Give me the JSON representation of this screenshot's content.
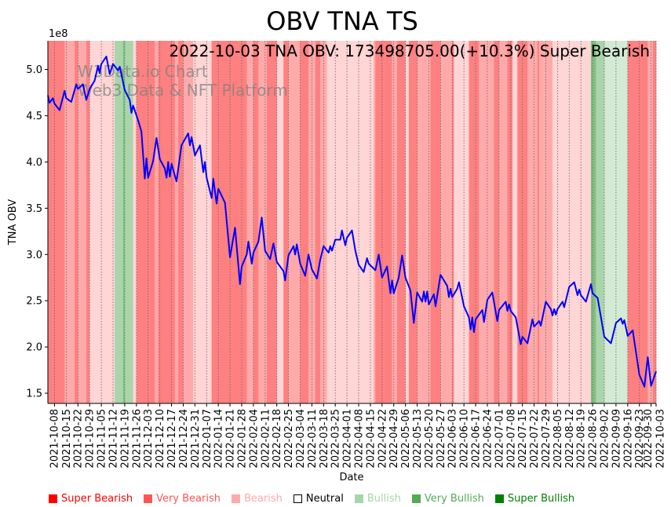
{
  "colors": {
    "line": "#0000ff",
    "band_super_bearish": "#ff8080",
    "band_very_bearish": "#ffaaaa",
    "band_bearish": "#ffd5d5",
    "band_bullish": "#d4ead4",
    "band_very_bullish": "#aad5aa",
    "band_super_bullish": "#80c080"
  },
  "legend": [
    {
      "label": "Super Bearish",
      "color": "#ff0000",
      "hollow": false
    },
    {
      "label": "Very Bearish",
      "color": "#ff5555",
      "hollow": false
    },
    {
      "label": "Bearish",
      "color": "#ffaaaa",
      "hollow": false
    },
    {
      "label": "Neutral",
      "color": "#000000",
      "hollow": true
    },
    {
      "label": "Bullish",
      "color": "#a8d5a8",
      "hollow": false
    },
    {
      "label": "Very Bullish",
      "color": "#55aa55",
      "hollow": false
    },
    {
      "label": "Super Bullish",
      "color": "#008000",
      "hollow": false
    }
  ],
  "chart_data": {
    "type": "line",
    "title": "OBV TNA TS",
    "annotation": "2022-10-03 TNA OBV: 173498705.00(+10.3%) Super Bearish",
    "watermark": [
      "W3Data.io Chart",
      "Web3 Data & NFT Platform"
    ],
    "xlabel": "Date",
    "ylabel": "TNA OBV",
    "y_offset_label": "1e8",
    "ylim": [
      1.39,
      5.31
    ],
    "y_ticks": [
      "1.5",
      "2.0",
      "2.5",
      "3.0",
      "3.5",
      "4.0",
      "4.5",
      "5.0"
    ],
    "x_origin": "2021-10-04",
    "x_end": "2022-10-03",
    "x_ticks": [
      "2021-10-08",
      "2021-10-15",
      "2021-10-22",
      "2021-10-29",
      "2021-11-05",
      "2021-11-12",
      "2021-11-19",
      "2021-11-26",
      "2021-12-03",
      "2021-12-10",
      "2021-12-17",
      "2021-12-24",
      "2021-12-31",
      "2022-01-07",
      "2022-01-14",
      "2022-01-21",
      "2022-01-28",
      "2022-02-04",
      "2022-02-11",
      "2022-02-18",
      "2022-02-25",
      "2022-03-04",
      "2022-03-11",
      "2022-03-18",
      "2022-03-25",
      "2022-04-01",
      "2022-04-08",
      "2022-04-15",
      "2022-04-22",
      "2022-04-29",
      "2022-05-06",
      "2022-05-13",
      "2022-05-20",
      "2022-05-27",
      "2022-06-03",
      "2022-06-10",
      "2022-06-17",
      "2022-06-24",
      "2022-07-01",
      "2022-07-08",
      "2022-07-15",
      "2022-07-22",
      "2022-07-29",
      "2022-08-05",
      "2022-08-12",
      "2022-08-19",
      "2022-08-26",
      "2022-09-02",
      "2022-09-09",
      "2022-09-16",
      "2022-09-23",
      "2022-09-30",
      "2022-10-03"
    ],
    "series": [
      {
        "name": "TNA OBV (1e8)",
        "x_unit": "days since x_origin",
        "points": [
          [
            0,
            4.72
          ],
          [
            1,
            4.64
          ],
          [
            3,
            4.69
          ],
          [
            4,
            4.63
          ],
          [
            7,
            4.56
          ],
          [
            10,
            4.77
          ],
          [
            11,
            4.69
          ],
          [
            14,
            4.65
          ],
          [
            17,
            4.84
          ],
          [
            18,
            4.79
          ],
          [
            21,
            4.84
          ],
          [
            23,
            4.67
          ],
          [
            25,
            4.79
          ],
          [
            28,
            4.88
          ],
          [
            30,
            5.04
          ],
          [
            31,
            4.96
          ],
          [
            32,
            5.06
          ],
          [
            35,
            5.14
          ],
          [
            37,
            4.95
          ],
          [
            39,
            5.06
          ],
          [
            42,
            4.99
          ],
          [
            43,
            5.03
          ],
          [
            46,
            4.78
          ],
          [
            49,
            4.67
          ],
          [
            50,
            4.53
          ],
          [
            51,
            4.61
          ],
          [
            54,
            4.45
          ],
          [
            56,
            4.33
          ],
          [
            58,
            3.82
          ],
          [
            59,
            4.04
          ],
          [
            60,
            3.83
          ],
          [
            63,
            4.01
          ],
          [
            65,
            4.26
          ],
          [
            67,
            4.03
          ],
          [
            70,
            3.93
          ],
          [
            71,
            3.83
          ],
          [
            72,
            4.0
          ],
          [
            73,
            3.84
          ],
          [
            74,
            3.98
          ],
          [
            77,
            3.79
          ],
          [
            80,
            4.18
          ],
          [
            84,
            4.31
          ],
          [
            85,
            4.18
          ],
          [
            86,
            4.27
          ],
          [
            88,
            4.07
          ],
          [
            91,
            4.18
          ],
          [
            93,
            3.89
          ],
          [
            94,
            4.0
          ],
          [
            95,
            3.83
          ],
          [
            98,
            3.61
          ],
          [
            99,
            3.82
          ],
          [
            101,
            3.55
          ],
          [
            102,
            3.71
          ],
          [
            106,
            3.56
          ],
          [
            109,
            2.97
          ],
          [
            112,
            3.29
          ],
          [
            115,
            2.68
          ],
          [
            116,
            2.87
          ],
          [
            119,
            3.0
          ],
          [
            120,
            3.14
          ],
          [
            122,
            2.9
          ],
          [
            123,
            3.02
          ],
          [
            126,
            3.14
          ],
          [
            128,
            3.4
          ],
          [
            130,
            3.04
          ],
          [
            133,
            2.95
          ],
          [
            135,
            3.12
          ],
          [
            137,
            2.92
          ],
          [
            141,
            2.82
          ],
          [
            142,
            2.72
          ],
          [
            144,
            2.99
          ],
          [
            147,
            3.09
          ],
          [
            148,
            3.0
          ],
          [
            149,
            3.11
          ],
          [
            151,
            2.9
          ],
          [
            154,
            2.77
          ],
          [
            156,
            3.0
          ],
          [
            158,
            2.84
          ],
          [
            161,
            2.74
          ],
          [
            163,
            2.94
          ],
          [
            165,
            3.09
          ],
          [
            168,
            3.02
          ],
          [
            169,
            3.09
          ],
          [
            170,
            3.04
          ],
          [
            172,
            3.16
          ],
          [
            175,
            3.16
          ],
          [
            176,
            3.26
          ],
          [
            178,
            3.1
          ],
          [
            179,
            3.18
          ],
          [
            182,
            3.26
          ],
          [
            184,
            3.04
          ],
          [
            186,
            2.89
          ],
          [
            189,
            2.81
          ],
          [
            191,
            2.96
          ],
          [
            192,
            2.9
          ],
          [
            196,
            2.83
          ],
          [
            198,
            3.0
          ],
          [
            200,
            2.75
          ],
          [
            203,
            2.87
          ],
          [
            205,
            2.58
          ],
          [
            206,
            2.72
          ],
          [
            207,
            2.58
          ],
          [
            210,
            2.75
          ],
          [
            212,
            2.99
          ],
          [
            214,
            2.75
          ],
          [
            217,
            2.61
          ],
          [
            219,
            2.26
          ],
          [
            221,
            2.59
          ],
          [
            224,
            2.49
          ],
          [
            225,
            2.6
          ],
          [
            226,
            2.49
          ],
          [
            227,
            2.6
          ],
          [
            228,
            2.46
          ],
          [
            231,
            2.57
          ],
          [
            232,
            2.44
          ],
          [
            235,
            2.78
          ],
          [
            239,
            2.66
          ],
          [
            240,
            2.54
          ],
          [
            241,
            2.63
          ],
          [
            242,
            2.54
          ],
          [
            245,
            2.63
          ],
          [
            246,
            2.7
          ],
          [
            249,
            2.44
          ],
          [
            252,
            2.32
          ],
          [
            253,
            2.19
          ],
          [
            254,
            2.32
          ],
          [
            255,
            2.16
          ],
          [
            256,
            2.3
          ],
          [
            260,
            2.4
          ],
          [
            261,
            2.27
          ],
          [
            263,
            2.51
          ],
          [
            266,
            2.59
          ],
          [
            269,
            2.28
          ],
          [
            270,
            2.4
          ],
          [
            274,
            2.49
          ],
          [
            275,
            2.39
          ],
          [
            276,
            2.46
          ],
          [
            277,
            2.39
          ],
          [
            280,
            2.32
          ],
          [
            283,
            2.03
          ],
          [
            284,
            2.11
          ],
          [
            287,
            2.04
          ],
          [
            290,
            2.3
          ],
          [
            291,
            2.22
          ],
          [
            294,
            2.28
          ],
          [
            295,
            2.23
          ],
          [
            298,
            2.49
          ],
          [
            301,
            2.41
          ],
          [
            302,
            2.34
          ],
          [
            303,
            2.41
          ],
          [
            304,
            2.35
          ],
          [
            305,
            2.41
          ],
          [
            308,
            2.49
          ],
          [
            309,
            2.43
          ],
          [
            312,
            2.65
          ],
          [
            315,
            2.7
          ],
          [
            317,
            2.56
          ],
          [
            318,
            2.62
          ],
          [
            319,
            2.56
          ],
          [
            322,
            2.49
          ],
          [
            325,
            2.68
          ],
          [
            326,
            2.58
          ],
          [
            329,
            2.53
          ],
          [
            333,
            2.11
          ],
          [
            337,
            2.04
          ],
          [
            340,
            2.26
          ],
          [
            343,
            2.31
          ],
          [
            344,
            2.25
          ],
          [
            345,
            2.29
          ],
          [
            347,
            2.12
          ],
          [
            350,
            2.18
          ],
          [
            354,
            1.7
          ],
          [
            357,
            1.57
          ],
          [
            359,
            1.89
          ],
          [
            361,
            1.58
          ],
          [
            364,
            1.735
          ]
        ]
      }
    ],
    "bands": [
      [
        "2021-10-04",
        "super_bearish"
      ],
      [
        "2021-10-14",
        "very_bearish"
      ],
      [
        "2021-10-20",
        "super_bearish"
      ],
      [
        "2021-10-22",
        "very_bearish"
      ],
      [
        "2021-10-27",
        "super_bearish"
      ],
      [
        "2021-10-29",
        "bearish"
      ],
      [
        "2021-11-13",
        "very_bullish"
      ],
      [
        "2021-11-18",
        "super_bullish"
      ],
      [
        "2021-11-19",
        "very_bullish"
      ],
      [
        "2021-11-24",
        "bearish"
      ],
      [
        "2021-11-26",
        "super_bearish"
      ],
      [
        "2021-12-07",
        "very_bearish"
      ],
      [
        "2021-12-09",
        "super_bearish"
      ],
      [
        "2021-12-19",
        "very_bearish"
      ],
      [
        "2021-12-21",
        "super_bearish"
      ],
      [
        "2021-12-24",
        "very_bearish"
      ],
      [
        "2021-12-30",
        "bearish"
      ],
      [
        "2022-01-10",
        "super_bearish"
      ],
      [
        "2022-01-31",
        "very_bearish"
      ],
      [
        "2022-02-04",
        "super_bearish"
      ],
      [
        "2022-02-07",
        "very_bearish"
      ],
      [
        "2022-02-12",
        "super_bearish"
      ],
      [
        "2022-02-18",
        "bearish"
      ],
      [
        "2022-02-22",
        "super_bearish"
      ],
      [
        "2022-02-25",
        "very_bearish"
      ],
      [
        "2022-03-04",
        "super_bearish"
      ],
      [
        "2022-03-09",
        "very_bearish"
      ],
      [
        "2022-03-13",
        "super_bearish"
      ],
      [
        "2022-03-16",
        "very_bearish"
      ],
      [
        "2022-03-20",
        "bearish"
      ],
      [
        "2022-04-17",
        "very_bearish"
      ],
      [
        "2022-04-18",
        "super_bearish"
      ],
      [
        "2022-04-28",
        "very_bearish"
      ],
      [
        "2022-05-01",
        "super_bearish"
      ],
      [
        "2022-05-06",
        "bearish"
      ],
      [
        "2022-05-08",
        "super_bearish"
      ],
      [
        "2022-05-13",
        "very_bearish"
      ],
      [
        "2022-05-21",
        "super_bearish"
      ],
      [
        "2022-05-27",
        "very_bearish"
      ],
      [
        "2022-06-03",
        "super_bearish"
      ],
      [
        "2022-06-04",
        "bearish"
      ],
      [
        "2022-06-13",
        "super_bearish"
      ],
      [
        "2022-06-19",
        "very_bearish"
      ],
      [
        "2022-06-28",
        "super_bearish"
      ],
      [
        "2022-07-01",
        "very_bearish"
      ],
      [
        "2022-07-06",
        "super_bearish"
      ],
      [
        "2022-07-09",
        "bearish"
      ],
      [
        "2022-07-12",
        "super_bearish"
      ],
      [
        "2022-07-18",
        "very_bearish"
      ],
      [
        "2022-07-24",
        "super_bearish"
      ],
      [
        "2022-07-25",
        "very_bearish"
      ],
      [
        "2022-08-02",
        "bearish"
      ],
      [
        "2022-08-25",
        "super_bullish"
      ],
      [
        "2022-08-28",
        "very_bullish"
      ],
      [
        "2022-09-02",
        "bullish"
      ],
      [
        "2022-09-16",
        "super_bearish"
      ],
      [
        "2022-09-28",
        "very_bearish"
      ],
      [
        "2022-10-01",
        "super_bearish"
      ]
    ]
  }
}
